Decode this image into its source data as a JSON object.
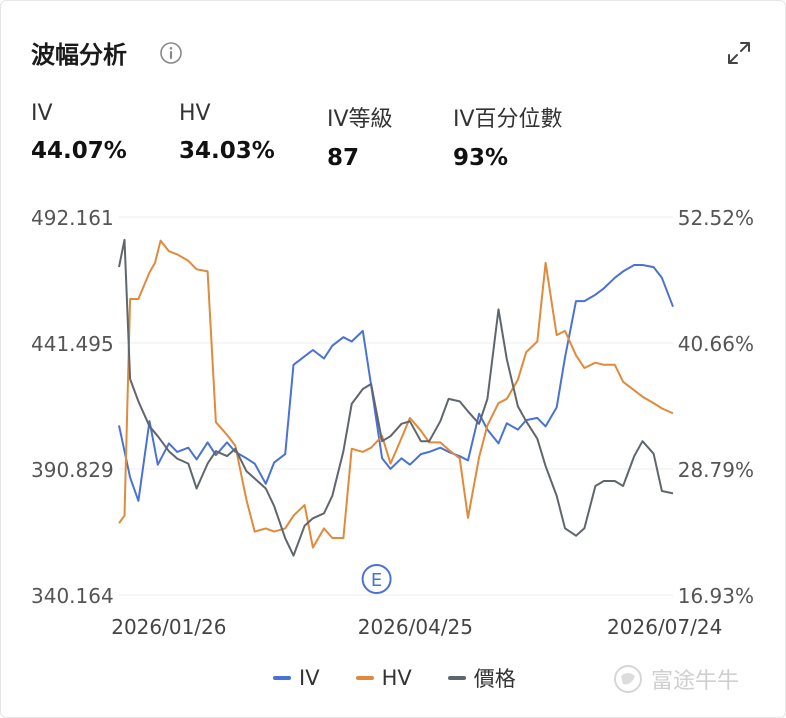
{
  "header": {
    "title": "波幅分析"
  },
  "stats": [
    {
      "label": "IV",
      "value": "44.07%"
    },
    {
      "label": "HV",
      "value": "34.03%"
    },
    {
      "label": "IV等級",
      "value": "87"
    },
    {
      "label": "IV百分位數",
      "value": "93%"
    }
  ],
  "chart_data": {
    "type": "line",
    "left_axis_ticks": [
      "492.161",
      "441.495",
      "390.829",
      "340.164"
    ],
    "right_axis_ticks": [
      "52.52%",
      "40.66%",
      "28.79%",
      "16.93%"
    ],
    "left_range": [
      340.164,
      492.161
    ],
    "right_range": [
      16.93,
      52.52
    ],
    "x_ticks": [
      "2026/01/26",
      "2026/04/25",
      "2026/07/24"
    ],
    "x_range": [
      "2026/01/08",
      "2026/07/27"
    ],
    "x_tick_dates": [
      "2026/01/26",
      "2026/04/25",
      "2026/07/24"
    ],
    "grid": true,
    "legend_position": "bottom",
    "earnings_marker": {
      "label": "E",
      "date": "2026/04/11"
    },
    "colors": {
      "IV": "#4a72d4",
      "HV": "#e08a3c",
      "price": "#5f666d"
    },
    "series": [
      {
        "name": "IV",
        "axis": "right",
        "color": "#4a72d4",
        "points": [
          [
            "2026/01/08",
            32.9
          ],
          [
            "2026/01/12",
            28.0
          ],
          [
            "2026/01/15",
            25.8
          ],
          [
            "2026/01/19",
            33.3
          ],
          [
            "2026/01/22",
            29.2
          ],
          [
            "2026/01/26",
            31.2
          ],
          [
            "2026/01/29",
            30.4
          ],
          [
            "2026/02/02",
            30.8
          ],
          [
            "2026/02/05",
            29.7
          ],
          [
            "2026/02/09",
            31.3
          ],
          [
            "2026/02/12",
            30.1
          ],
          [
            "2026/02/16",
            31.3
          ],
          [
            "2026/02/19",
            30.4
          ],
          [
            "2026/02/23",
            29.8
          ],
          [
            "2026/02/26",
            29.3
          ],
          [
            "2026/03/02",
            27.4
          ],
          [
            "2026/03/05",
            29.4
          ],
          [
            "2026/03/09",
            30.2
          ],
          [
            "2026/03/12",
            38.6
          ],
          [
            "2026/03/16",
            39.4
          ],
          [
            "2026/03/19",
            40.0
          ],
          [
            "2026/03/23",
            39.2
          ],
          [
            "2026/03/26",
            40.4
          ],
          [
            "2026/03/30",
            41.2
          ],
          [
            "2026/04/02",
            40.8
          ],
          [
            "2026/04/06",
            41.8
          ],
          [
            "2026/04/09",
            36.7
          ],
          [
            "2026/04/13",
            29.8
          ],
          [
            "2026/04/16",
            28.8
          ],
          [
            "2026/04/20",
            29.8
          ],
          [
            "2026/04/23",
            29.2
          ],
          [
            "2026/04/27",
            30.2
          ],
          [
            "2026/04/30",
            30.4
          ],
          [
            "2026/05/04",
            30.8
          ],
          [
            "2026/05/07",
            30.4
          ],
          [
            "2026/05/11",
            30.0
          ],
          [
            "2026/05/14",
            29.6
          ],
          [
            "2026/05/18",
            34.0
          ],
          [
            "2026/05/21",
            32.5
          ],
          [
            "2026/05/25",
            31.2
          ],
          [
            "2026/05/28",
            33.1
          ],
          [
            "2026/06/01",
            32.5
          ],
          [
            "2026/06/04",
            33.4
          ],
          [
            "2026/06/08",
            33.6
          ],
          [
            "2026/06/11",
            32.8
          ],
          [
            "2026/06/15",
            34.6
          ],
          [
            "2026/06/18",
            39.3
          ],
          [
            "2026/06/22",
            44.6
          ],
          [
            "2026/06/25",
            44.6
          ],
          [
            "2026/06/29",
            45.2
          ],
          [
            "2026/07/02",
            45.8
          ],
          [
            "2026/07/06",
            46.8
          ],
          [
            "2026/07/09",
            47.4
          ],
          [
            "2026/07/13",
            48.0
          ],
          [
            "2026/07/16",
            48.0
          ],
          [
            "2026/07/20",
            47.8
          ],
          [
            "2026/07/23",
            46.8
          ],
          [
            "2026/07/27",
            44.07
          ]
        ]
      },
      {
        "name": "HV",
        "axis": "right",
        "color": "#e08a3c",
        "points": [
          [
            "2026/01/08",
            23.7
          ],
          [
            "2026/01/10",
            24.4
          ],
          [
            "2026/01/12",
            44.8
          ],
          [
            "2026/01/15",
            44.8
          ],
          [
            "2026/01/19",
            47.3
          ],
          [
            "2026/01/21",
            48.2
          ],
          [
            "2026/01/23",
            50.3
          ],
          [
            "2026/01/26",
            49.3
          ],
          [
            "2026/01/29",
            49.0
          ],
          [
            "2026/02/02",
            48.4
          ],
          [
            "2026/02/05",
            47.6
          ],
          [
            "2026/02/09",
            47.4
          ],
          [
            "2026/02/12",
            33.2
          ],
          [
            "2026/02/16",
            32.0
          ],
          [
            "2026/02/19",
            31.0
          ],
          [
            "2026/02/23",
            25.9
          ],
          [
            "2026/02/26",
            22.9
          ],
          [
            "2026/03/02",
            23.2
          ],
          [
            "2026/03/05",
            22.9
          ],
          [
            "2026/03/09",
            23.2
          ],
          [
            "2026/03/12",
            24.4
          ],
          [
            "2026/03/16",
            25.4
          ],
          [
            "2026/03/19",
            21.4
          ],
          [
            "2026/03/23",
            23.2
          ],
          [
            "2026/03/26",
            22.3
          ],
          [
            "2026/03/30",
            22.3
          ],
          [
            "2026/04/02",
            30.7
          ],
          [
            "2026/04/06",
            30.4
          ],
          [
            "2026/04/09",
            30.8
          ],
          [
            "2026/04/13",
            31.9
          ],
          [
            "2026/04/16",
            29.3
          ],
          [
            "2026/04/20",
            31.7
          ],
          [
            "2026/04/23",
            33.6
          ],
          [
            "2026/04/27",
            32.4
          ],
          [
            "2026/04/30",
            31.3
          ],
          [
            "2026/05/04",
            31.3
          ],
          [
            "2026/05/07",
            30.6
          ],
          [
            "2026/05/11",
            29.8
          ],
          [
            "2026/05/14",
            24.2
          ],
          [
            "2026/05/18",
            29.9
          ],
          [
            "2026/05/21",
            32.9
          ],
          [
            "2026/05/25",
            35.0
          ],
          [
            "2026/05/28",
            35.4
          ],
          [
            "2026/06/01",
            37.2
          ],
          [
            "2026/06/04",
            39.8
          ],
          [
            "2026/06/08",
            40.8
          ],
          [
            "2026/06/11",
            48.2
          ],
          [
            "2026/06/15",
            41.4
          ],
          [
            "2026/06/18",
            41.8
          ],
          [
            "2026/06/22",
            39.5
          ],
          [
            "2026/06/25",
            38.3
          ],
          [
            "2026/06/29",
            38.8
          ],
          [
            "2026/07/02",
            38.6
          ],
          [
            "2026/07/06",
            38.6
          ],
          [
            "2026/07/09",
            37.0
          ],
          [
            "2026/07/13",
            36.2
          ],
          [
            "2026/07/16",
            35.6
          ],
          [
            "2026/07/20",
            35.0
          ],
          [
            "2026/07/23",
            34.5
          ],
          [
            "2026/07/27",
            34.03
          ]
        ]
      },
      {
        "name": "價格",
        "axis": "left",
        "color": "#5f666d",
        "points": [
          [
            "2026/01/08",
            472
          ],
          [
            "2026/01/10",
            483
          ],
          [
            "2026/01/12",
            427
          ],
          [
            "2026/01/15",
            418
          ],
          [
            "2026/01/19",
            408
          ],
          [
            "2026/01/22",
            404
          ],
          [
            "2026/01/26",
            398
          ],
          [
            "2026/01/29",
            395
          ],
          [
            "2026/02/02",
            393
          ],
          [
            "2026/02/05",
            383
          ],
          [
            "2026/02/09",
            393
          ],
          [
            "2026/02/12",
            398
          ],
          [
            "2026/02/16",
            396
          ],
          [
            "2026/02/19",
            399
          ],
          [
            "2026/02/23",
            390
          ],
          [
            "2026/02/26",
            387
          ],
          [
            "2026/03/02",
            383
          ],
          [
            "2026/03/05",
            376
          ],
          [
            "2026/03/09",
            363
          ],
          [
            "2026/03/12",
            356
          ],
          [
            "2026/03/16",
            368
          ],
          [
            "2026/03/19",
            371
          ],
          [
            "2026/03/23",
            373
          ],
          [
            "2026/03/26",
            380
          ],
          [
            "2026/03/30",
            398
          ],
          [
            "2026/04/02",
            417
          ],
          [
            "2026/04/06",
            423
          ],
          [
            "2026/04/09",
            425
          ],
          [
            "2026/04/13",
            402
          ],
          [
            "2026/04/16",
            404
          ],
          [
            "2026/04/20",
            409
          ],
          [
            "2026/04/23",
            410
          ],
          [
            "2026/04/27",
            402
          ],
          [
            "2026/04/30",
            402
          ],
          [
            "2026/05/04",
            410
          ],
          [
            "2026/05/07",
            419
          ],
          [
            "2026/05/11",
            418
          ],
          [
            "2026/05/14",
            414
          ],
          [
            "2026/05/18",
            409
          ],
          [
            "2026/05/21",
            419
          ],
          [
            "2026/05/25",
            455
          ],
          [
            "2026/05/28",
            435
          ],
          [
            "2026/06/01",
            416
          ],
          [
            "2026/06/04",
            410
          ],
          [
            "2026/06/08",
            403
          ],
          [
            "2026/06/11",
            392
          ],
          [
            "2026/06/15",
            380
          ],
          [
            "2026/06/18",
            367
          ],
          [
            "2026/06/22",
            364
          ],
          [
            "2026/06/25",
            367
          ],
          [
            "2026/06/29",
            384
          ],
          [
            "2026/07/02",
            386
          ],
          [
            "2026/07/06",
            386
          ],
          [
            "2026/07/09",
            384
          ],
          [
            "2026/07/13",
            396
          ],
          [
            "2026/07/16",
            402
          ],
          [
            "2026/07/20",
            397
          ],
          [
            "2026/07/23",
            382
          ],
          [
            "2026/07/27",
            381
          ]
        ]
      }
    ]
  },
  "legend": [
    {
      "label": "IV",
      "color": "#4a72d4"
    },
    {
      "label": "HV",
      "color": "#e08a3c"
    },
    {
      "label": "價格",
      "color": "#5f666d"
    }
  ],
  "watermark": {
    "text": "富途牛牛"
  }
}
